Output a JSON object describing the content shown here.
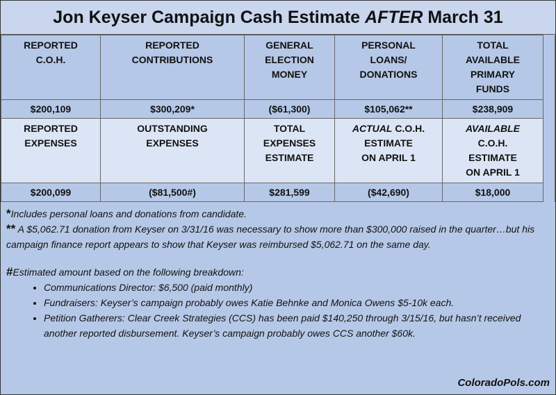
{
  "header": {
    "title": [
      "Jon Keyser Campaign Cash Estimate ",
      "AFTER",
      " March 31"
    ]
  },
  "table": {
    "rows": [
      [
        [
          "REPORTED",
          "C.O.H."
        ],
        [
          "REPORTED",
          "CONTRIBUTIONS"
        ],
        [
          "GENERAL",
          "ELECTION",
          "MONEY"
        ],
        [
          "PERSONAL",
          "LOANS/",
          "DONATIONS"
        ],
        [
          "TOTAL",
          "AVAILABLE",
          "PRIMARY",
          "FUNDS"
        ]
      ],
      [
        "$200,109",
        "$300,209*",
        "($61,300)",
        "$105,062**",
        "$238,909"
      ],
      [
        [
          "REPORTED",
          "EXPENSES"
        ],
        [
          "OUTSTANDING",
          "EXPENSES"
        ],
        [
          "TOTAL",
          "EXPENSES",
          "ESTIMATE"
        ],
        [
          {
            "em": "ACTUAL",
            "text": " C.O.H."
          },
          "ESTIMATE",
          "ON APRIL 1"
        ],
        [
          {
            "em": "AVAILABLE",
            "text": ""
          },
          "C.O.H.",
          "ESTIMATE",
          "ON APRIL 1"
        ]
      ],
      [
        "$200,099",
        "($81,500#)",
        "$281,599",
        "($42,690)",
        "$18,000"
      ]
    ]
  },
  "notes": [
    {
      "marker": "*",
      "text": "Includes personal loans and donations from candidate."
    },
    {
      "marker": "**",
      "text": " A $5,062.71 donation from Keyser on 3/31/16 was necessary to show more than $300,000 raised in the quarter…but his campaign finance report appears to show that Keyser was reimbursed $5,062.71 on the same day."
    },
    {
      "marker": "#",
      "text": "Estimated amount based on the following breakdown:"
    }
  ],
  "bullets": [
    "Communications Director: $6,500 (paid monthly)",
    "Fundraisers: Keyser’s campaign probably owes Katie Behnke and Monica Owens $5-10k each.",
    "Petition Gatherers: Clear Creek Strategies (CCS) has been paid $140,250 through 3/15/16, but hasn’t received another reported disbursement. Keyser’s campaign probably owes CCS another $60k."
  ],
  "footer": {
    "source": "ColoradoPols.com"
  }
}
